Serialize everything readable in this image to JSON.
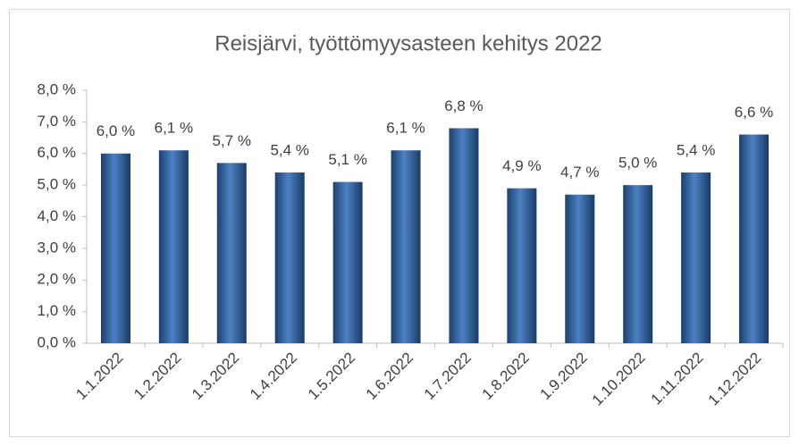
{
  "chart_data": {
    "type": "bar",
    "title": "Reisjärvi, työttömyysasteen kehitys 2022",
    "categories": [
      "1.1.2022",
      "1.2.2022",
      "1.3.2022",
      "1.4.2022",
      "1.5.2022",
      "1.6.2022",
      "1.7.2022",
      "1.8.2022",
      "1.9.2022",
      "1.10.2022",
      "1.11.2022",
      "1.12.2022"
    ],
    "values": [
      6.0,
      6.1,
      5.7,
      5.4,
      5.1,
      6.1,
      6.8,
      4.9,
      4.7,
      5.0,
      5.4,
      6.6
    ],
    "value_labels": [
      "6,0 %",
      "6,1 %",
      "5,7 %",
      "5,4 %",
      "5,1 %",
      "6,1 %",
      "6,8 %",
      "4,9 %",
      "4,7 %",
      "5,0 %",
      "5,4 %",
      "6,6 %"
    ],
    "color": "#2e6bb8",
    "ylim": [
      0,
      8
    ],
    "yticks": [
      {
        "value": 0,
        "label": "0,0 %"
      },
      {
        "value": 1,
        "label": "1,0 %"
      },
      {
        "value": 2,
        "label": "2,0 %"
      },
      {
        "value": 3,
        "label": "3,0 %"
      },
      {
        "value": 4,
        "label": "4,0 %"
      },
      {
        "value": 5,
        "label": "5,0 %"
      },
      {
        "value": 6,
        "label": "6,0 %"
      },
      {
        "value": 7,
        "label": "7,0 %"
      },
      {
        "value": 8,
        "label": "8,0 %"
      }
    ],
    "grid": false
  }
}
